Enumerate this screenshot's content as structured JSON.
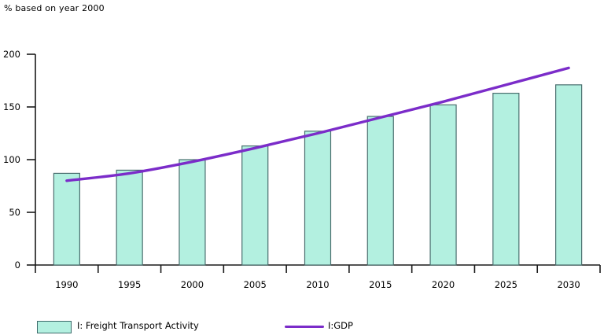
{
  "title": "% based on year 2000",
  "legend": {
    "items": [
      {
        "label": "I: Freight Transport Activity",
        "swatch": "bar"
      },
      {
        "label": "I:GDP",
        "swatch": "line"
      }
    ]
  },
  "colors": {
    "background": "#ffffff",
    "bar_fill": "#b3f0e0",
    "bar_border": "#4a6e6e",
    "line": "#7b2cc9",
    "axis": "#1a1a1a",
    "text": "#000000"
  },
  "chart_data": {
    "type": "bar",
    "title": "% based on year 2000",
    "categories": [
      "1990",
      "1995",
      "2000",
      "2005",
      "2010",
      "2015",
      "2020",
      "2025",
      "2030"
    ],
    "series": [
      {
        "name": "I: Freight Transport Activity",
        "type": "bar",
        "values": [
          87,
          90,
          100,
          113,
          127,
          141,
          152,
          163,
          171
        ]
      },
      {
        "name": "I:GDP",
        "type": "line",
        "values": [
          80,
          87,
          98,
          111,
          125,
          140,
          155,
          171,
          187
        ]
      }
    ],
    "xlabel": "",
    "ylabel": "",
    "ylim": [
      0,
      200
    ],
    "yticks": [
      0,
      50,
      100,
      150,
      200
    ],
    "grid": false,
    "legend_position": "bottom"
  }
}
